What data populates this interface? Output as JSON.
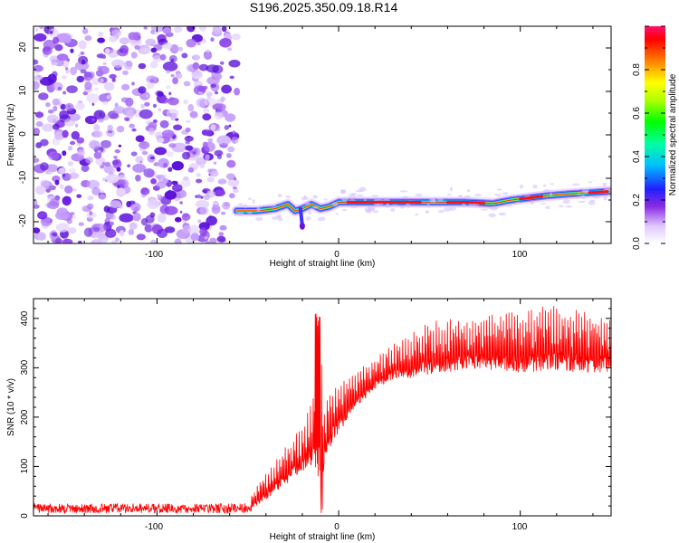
{
  "title": "S196.2025.350.09.18.R14",
  "chart_data": [
    {
      "type": "heatmap",
      "xlabel": "Height of straight line (km)",
      "ylabel": "Frequency (Hz)",
      "xlim": [
        -168,
        150
      ],
      "ylim": [
        -25,
        25
      ],
      "x_ticks": [
        "-100",
        "0",
        "100"
      ],
      "y_ticks": [
        "20",
        "10",
        "0",
        "-10",
        "-20"
      ],
      "colorbar": {
        "label": "Normalized spectral amplitude",
        "range": [
          0,
          1
        ],
        "ticks": [
          "0.0",
          "0.2",
          "0.4",
          "0.6",
          "0.8"
        ]
      },
      "noise_region_x": [
        -168,
        -56
      ],
      "ridge": {
        "x": [
          -56,
          -45,
          -35,
          -28,
          -24,
          -20,
          -15,
          -10,
          -5,
          0,
          20,
          50,
          70,
          85,
          95,
          105,
          115,
          130,
          150
        ],
        "frequency": [
          -17.5,
          -17.5,
          -17.0,
          -16.0,
          -17.5,
          -17.0,
          -16.0,
          -17.0,
          -16.5,
          -15.5,
          -15.5,
          -15.5,
          -15.5,
          -15.8,
          -15.0,
          -14.5,
          -14.0,
          -13.5,
          -13.0
        ]
      },
      "dip_feature": {
        "x": -20,
        "frequency": -21
      }
    },
    {
      "type": "line",
      "xlabel": "Height of straight line (km)",
      "ylabel": "SNR (10 * v/v)",
      "xlim": [
        -168,
        150
      ],
      "ylim": [
        0,
        440
      ],
      "x_ticks": [
        "-100",
        "0",
        "100"
      ],
      "y_ticks": [
        "0",
        "100",
        "200",
        "300",
        "400"
      ],
      "series": [
        {
          "name": "SNR",
          "color": "#ff0000",
          "x": [
            -168,
            -140,
            -110,
            -80,
            -60,
            -50,
            -45,
            -40,
            -30,
            -20,
            -15,
            -12,
            -11,
            -10,
            -9,
            -8,
            -5,
            0,
            10,
            20,
            30,
            40,
            50,
            60,
            80,
            100,
            120,
            140,
            150
          ],
          "baseline": [
            15,
            15,
            15,
            15,
            15,
            16,
            25,
            40,
            70,
            100,
            120,
            130,
            100,
            80,
            90,
            120,
            150,
            180,
            230,
            265,
            285,
            290,
            300,
            305,
            310,
            305,
            310,
            305,
            305
          ],
          "spike_peak": [
            30,
            32,
            30,
            30,
            28,
            30,
            60,
            90,
            140,
            180,
            240,
            300,
            360,
            415,
            300,
            230,
            250,
            270,
            300,
            320,
            350,
            370,
            395,
            400,
            405,
            415,
            430,
            415,
            400
          ]
        }
      ]
    }
  ],
  "colors": {
    "signal_line": "#ff0000",
    "noise_purple": "#6a2be0",
    "colorbar_top": "#ff1070"
  }
}
